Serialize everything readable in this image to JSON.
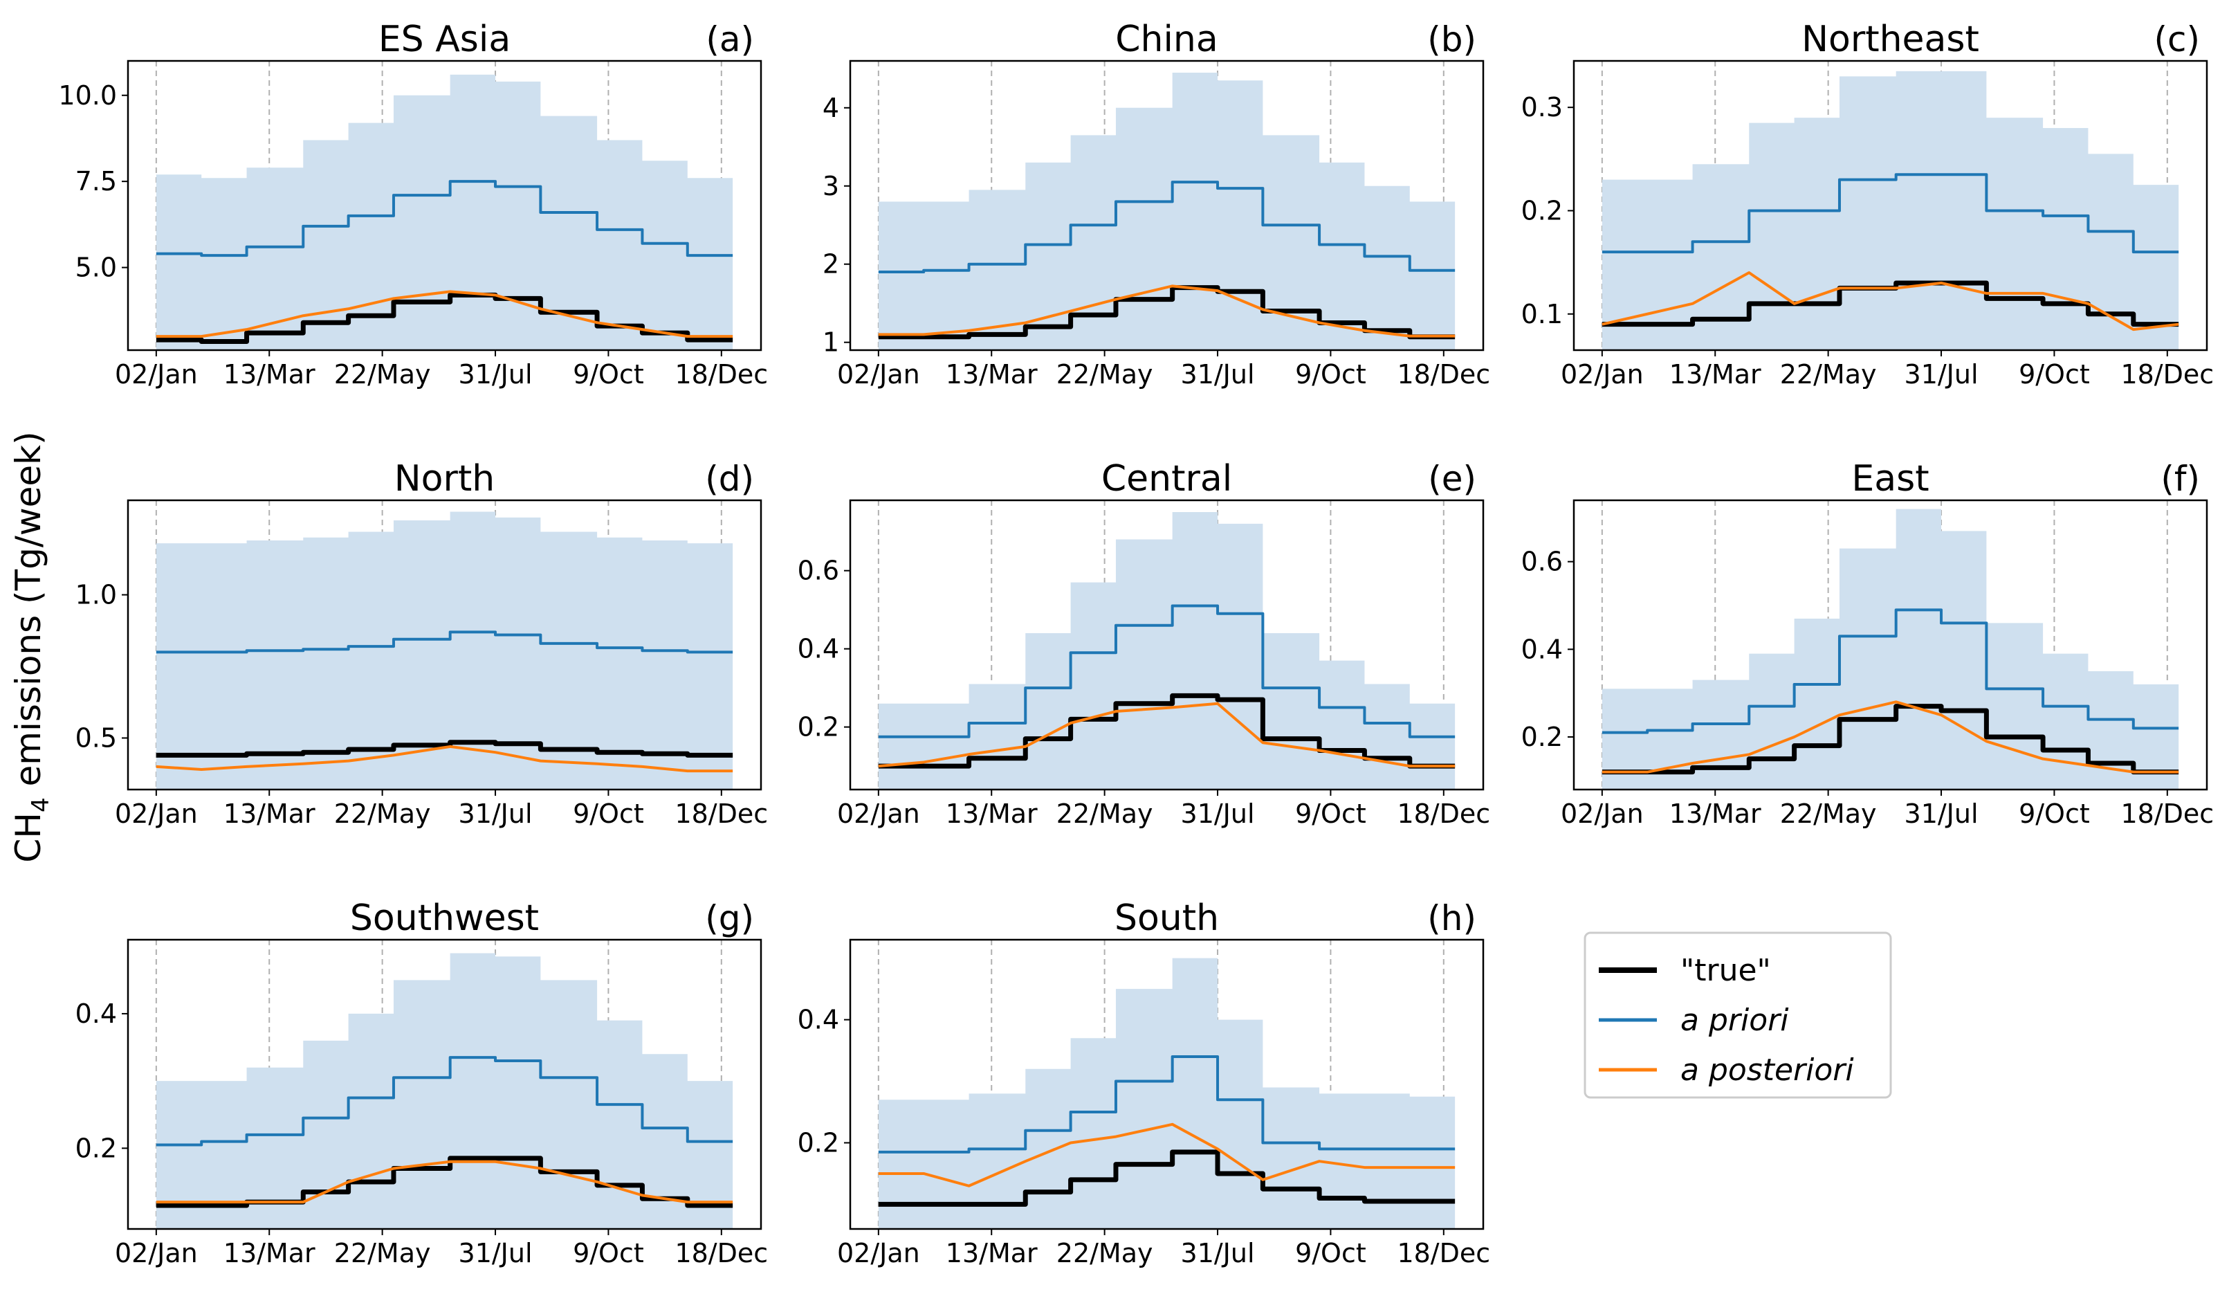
{
  "ylabel": [
    "CH",
    "4",
    " emissions (Tg/week)"
  ],
  "chart_data": [
    {
      "type": "line",
      "title": "ES Asia",
      "panel_label": "(a)",
      "x": [
        0,
        4,
        8,
        13,
        17,
        21,
        26,
        30,
        34,
        39,
        43,
        47,
        51
      ],
      "xlim": [
        -2.5,
        53.5
      ],
      "xticks": [
        {
          "value": 0,
          "label": "02/Jan"
        },
        {
          "value": 10,
          "label": "13/Mar"
        },
        {
          "value": 20,
          "label": "22/May"
        },
        {
          "value": 30,
          "label": "31/Jul"
        },
        {
          "value": 40,
          "label": "9/Oct"
        },
        {
          "value": 50,
          "label": "18/Dec"
        }
      ],
      "ylim": [
        2.6,
        11.0
      ],
      "yticks": [
        {
          "value": 5,
          "label": "5.0"
        },
        {
          "value": 7.5,
          "label": "7.5"
        },
        {
          "value": 10,
          "label": "10.0"
        }
      ],
      "grid": "x",
      "band": {
        "color": "#cfe0ef",
        "values": [
          7.7,
          7.6,
          7.9,
          8.7,
          9.2,
          10.0,
          10.6,
          10.4,
          9.4,
          8.7,
          8.1,
          7.6,
          7.6
        ]
      },
      "series": [
        {
          "name": "\"true\"",
          "color": "#000000",
          "width": 7,
          "drawstyle": "steps-post",
          "values": [
            2.9,
            2.85,
            3.1,
            3.4,
            3.6,
            4.0,
            4.2,
            4.1,
            3.7,
            3.3,
            3.1,
            2.9,
            2.9
          ]
        },
        {
          "name": "a priori",
          "color": "#1f77b4",
          "width": 4,
          "drawstyle": "steps-post",
          "values": [
            5.4,
            5.35,
            5.6,
            6.2,
            6.5,
            7.1,
            7.5,
            7.35,
            6.6,
            6.1,
            5.7,
            5.35,
            5.35
          ]
        },
        {
          "name": "a posteriori",
          "color": "#ff7f0e",
          "width": 4,
          "drawstyle": "default",
          "values": [
            3.0,
            3.0,
            3.2,
            3.6,
            3.8,
            4.1,
            4.3,
            4.2,
            3.8,
            3.4,
            3.2,
            3.0,
            3.0
          ]
        }
      ]
    },
    {
      "type": "line",
      "title": "China",
      "panel_label": "(b)",
      "x": [
        0,
        4,
        8,
        13,
        17,
        21,
        26,
        30,
        34,
        39,
        43,
        47,
        51
      ],
      "xlim": [
        -2.5,
        53.5
      ],
      "xticks": [
        {
          "value": 0,
          "label": "02/Jan"
        },
        {
          "value": 10,
          "label": "13/Mar"
        },
        {
          "value": 20,
          "label": "22/May"
        },
        {
          "value": 30,
          "label": "31/Jul"
        },
        {
          "value": 40,
          "label": "9/Oct"
        },
        {
          "value": 50,
          "label": "18/Dec"
        }
      ],
      "ylim": [
        0.9,
        4.6
      ],
      "yticks": [
        1,
        2,
        3,
        4
      ],
      "grid": "x",
      "band": {
        "color": "#cfe0ef",
        "values": [
          2.8,
          2.8,
          2.95,
          3.3,
          3.65,
          4.0,
          4.45,
          4.35,
          3.65,
          3.3,
          3.0,
          2.8,
          2.8
        ]
      },
      "series": [
        {
          "name": "\"true\"",
          "color": "#000000",
          "width": 7,
          "drawstyle": "steps-post",
          "values": [
            1.07,
            1.07,
            1.1,
            1.2,
            1.35,
            1.55,
            1.7,
            1.65,
            1.4,
            1.25,
            1.15,
            1.07,
            1.07
          ]
        },
        {
          "name": "a priori",
          "color": "#1f77b4",
          "width": 4,
          "drawstyle": "steps-post",
          "values": [
            1.9,
            1.92,
            2.0,
            2.25,
            2.5,
            2.8,
            3.05,
            2.97,
            2.5,
            2.25,
            2.1,
            1.92,
            1.92
          ]
        },
        {
          "name": "a posteriori",
          "color": "#ff7f0e",
          "width": 4,
          "drawstyle": "default",
          "values": [
            1.1,
            1.1,
            1.15,
            1.25,
            1.4,
            1.55,
            1.72,
            1.66,
            1.42,
            1.25,
            1.15,
            1.08,
            1.08
          ]
        }
      ]
    },
    {
      "type": "line",
      "title": "Northeast",
      "panel_label": "(c)",
      "x": [
        0,
        4,
        8,
        13,
        17,
        21,
        26,
        30,
        34,
        39,
        43,
        47,
        51
      ],
      "xlim": [
        -2.5,
        53.5
      ],
      "xticks": [
        {
          "value": 0,
          "label": "02/Jan"
        },
        {
          "value": 10,
          "label": "13/Mar"
        },
        {
          "value": 20,
          "label": "22/May"
        },
        {
          "value": 30,
          "label": "31/Jul"
        },
        {
          "value": 40,
          "label": "9/Oct"
        },
        {
          "value": 50,
          "label": "18/Dec"
        }
      ],
      "ylim": [
        0.065,
        0.345
      ],
      "yticks": [
        0.1,
        0.2,
        0.3
      ],
      "grid": "x",
      "band": {
        "color": "#cfe0ef",
        "values": [
          0.23,
          0.23,
          0.245,
          0.285,
          0.29,
          0.33,
          0.335,
          0.335,
          0.29,
          0.28,
          0.255,
          0.225,
          0.225
        ]
      },
      "series": [
        {
          "name": "\"true\"",
          "color": "#000000",
          "width": 7,
          "drawstyle": "steps-post",
          "values": [
            0.09,
            0.09,
            0.095,
            0.11,
            0.11,
            0.125,
            0.13,
            0.13,
            0.115,
            0.11,
            0.1,
            0.09,
            0.09
          ]
        },
        {
          "name": "a priori",
          "color": "#1f77b4",
          "width": 4,
          "drawstyle": "steps-post",
          "values": [
            0.16,
            0.16,
            0.17,
            0.2,
            0.2,
            0.23,
            0.235,
            0.235,
            0.2,
            0.195,
            0.18,
            0.16,
            0.16
          ]
        },
        {
          "name": "a posteriori",
          "color": "#ff7f0e",
          "width": 4,
          "drawstyle": "default",
          "values": [
            0.09,
            0.1,
            0.11,
            0.14,
            0.11,
            0.125,
            0.125,
            0.13,
            0.12,
            0.12,
            0.11,
            0.085,
            0.09
          ]
        }
      ]
    },
    {
      "type": "line",
      "title": "North",
      "panel_label": "(d)",
      "x": [
        0,
        4,
        8,
        13,
        17,
        21,
        26,
        30,
        34,
        39,
        43,
        47,
        51
      ],
      "xlim": [
        -2.5,
        53.5
      ],
      "xticks": [
        {
          "value": 0,
          "label": "02/Jan"
        },
        {
          "value": 10,
          "label": "13/Mar"
        },
        {
          "value": 20,
          "label": "22/May"
        },
        {
          "value": 30,
          "label": "31/Jul"
        },
        {
          "value": 40,
          "label": "9/Oct"
        },
        {
          "value": 50,
          "label": "18/Dec"
        }
      ],
      "ylim": [
        0.32,
        1.33
      ],
      "yticks": [
        0.5,
        {
          "value": 1,
          "label": "1.0"
        }
      ],
      "grid": "x",
      "band": {
        "color": "#cfe0ef",
        "values": [
          1.18,
          1.18,
          1.19,
          1.2,
          1.22,
          1.26,
          1.29,
          1.27,
          1.22,
          1.2,
          1.19,
          1.18,
          1.18
        ]
      },
      "series": [
        {
          "name": "\"true\"",
          "color": "#000000",
          "width": 7,
          "drawstyle": "steps-post",
          "values": [
            0.44,
            0.44,
            0.445,
            0.45,
            0.46,
            0.475,
            0.485,
            0.48,
            0.46,
            0.45,
            0.445,
            0.44,
            0.44
          ]
        },
        {
          "name": "a priori",
          "color": "#1f77b4",
          "width": 4,
          "drawstyle": "steps-post",
          "values": [
            0.8,
            0.8,
            0.805,
            0.81,
            0.82,
            0.845,
            0.87,
            0.86,
            0.83,
            0.815,
            0.805,
            0.8,
            0.8
          ]
        },
        {
          "name": "a posteriori",
          "color": "#ff7f0e",
          "width": 4,
          "drawstyle": "default",
          "values": [
            0.4,
            0.39,
            0.4,
            0.41,
            0.42,
            0.44,
            0.47,
            0.45,
            0.42,
            0.41,
            0.4,
            0.385,
            0.385
          ]
        }
      ]
    },
    {
      "type": "line",
      "title": "Central",
      "panel_label": "(e)",
      "x": [
        0,
        4,
        8,
        13,
        17,
        21,
        26,
        30,
        34,
        39,
        43,
        47,
        51
      ],
      "xlim": [
        -2.5,
        53.5
      ],
      "xticks": [
        {
          "value": 0,
          "label": "02/Jan"
        },
        {
          "value": 10,
          "label": "13/Mar"
        },
        {
          "value": 20,
          "label": "22/May"
        },
        {
          "value": 30,
          "label": "31/Jul"
        },
        {
          "value": 40,
          "label": "9/Oct"
        },
        {
          "value": 50,
          "label": "18/Dec"
        }
      ],
      "ylim": [
        0.04,
        0.78
      ],
      "yticks": [
        0.2,
        0.4,
        0.6
      ],
      "grid": "x",
      "band": {
        "color": "#cfe0ef",
        "values": [
          0.26,
          0.26,
          0.31,
          0.44,
          0.57,
          0.68,
          0.75,
          0.72,
          0.44,
          0.37,
          0.31,
          0.26,
          0.26
        ]
      },
      "series": [
        {
          "name": "\"true\"",
          "color": "#000000",
          "width": 7,
          "drawstyle": "steps-post",
          "values": [
            0.1,
            0.1,
            0.12,
            0.17,
            0.22,
            0.26,
            0.28,
            0.27,
            0.17,
            0.14,
            0.12,
            0.1,
            0.1
          ]
        },
        {
          "name": "a priori",
          "color": "#1f77b4",
          "width": 4,
          "drawstyle": "steps-post",
          "values": [
            0.175,
            0.175,
            0.21,
            0.3,
            0.39,
            0.46,
            0.51,
            0.49,
            0.3,
            0.25,
            0.21,
            0.175,
            0.175
          ]
        },
        {
          "name": "a posteriori",
          "color": "#ff7f0e",
          "width": 4,
          "drawstyle": "default",
          "values": [
            0.1,
            0.11,
            0.13,
            0.15,
            0.21,
            0.24,
            0.25,
            0.26,
            0.16,
            0.14,
            0.12,
            0.1,
            0.1
          ]
        }
      ]
    },
    {
      "type": "line",
      "title": "East",
      "panel_label": "(f)",
      "x": [
        0,
        4,
        8,
        13,
        17,
        21,
        26,
        30,
        34,
        39,
        43,
        47,
        51
      ],
      "xlim": [
        -2.5,
        53.5
      ],
      "xticks": [
        {
          "value": 0,
          "label": "02/Jan"
        },
        {
          "value": 10,
          "label": "13/Mar"
        },
        {
          "value": 20,
          "label": "22/May"
        },
        {
          "value": 30,
          "label": "31/Jul"
        },
        {
          "value": 40,
          "label": "9/Oct"
        },
        {
          "value": 50,
          "label": "18/Dec"
        }
      ],
      "ylim": [
        0.08,
        0.74
      ],
      "yticks": [
        0.2,
        0.4,
        0.6
      ],
      "grid": "x",
      "band": {
        "color": "#cfe0ef",
        "values": [
          0.31,
          0.31,
          0.33,
          0.39,
          0.47,
          0.63,
          0.72,
          0.67,
          0.46,
          0.39,
          0.35,
          0.32,
          0.32
        ]
      },
      "series": [
        {
          "name": "\"true\"",
          "color": "#000000",
          "width": 7,
          "drawstyle": "steps-post",
          "values": [
            0.12,
            0.12,
            0.13,
            0.15,
            0.18,
            0.24,
            0.27,
            0.26,
            0.2,
            0.17,
            0.14,
            0.12,
            0.12
          ]
        },
        {
          "name": "a priori",
          "color": "#1f77b4",
          "width": 4,
          "drawstyle": "steps-post",
          "values": [
            0.21,
            0.215,
            0.23,
            0.27,
            0.32,
            0.43,
            0.49,
            0.46,
            0.31,
            0.27,
            0.24,
            0.22,
            0.22
          ]
        },
        {
          "name": "a posteriori",
          "color": "#ff7f0e",
          "width": 4,
          "drawstyle": "default",
          "values": [
            0.12,
            0.12,
            0.14,
            0.16,
            0.2,
            0.25,
            0.28,
            0.25,
            0.19,
            0.15,
            0.135,
            0.12,
            0.12
          ]
        }
      ]
    },
    {
      "type": "line",
      "title": "Southwest",
      "panel_label": "(g)",
      "x": [
        0,
        4,
        8,
        13,
        17,
        21,
        26,
        30,
        34,
        39,
        43,
        47,
        51
      ],
      "xlim": [
        -2.5,
        53.5
      ],
      "xticks": [
        {
          "value": 0,
          "label": "02/Jan"
        },
        {
          "value": 10,
          "label": "13/Mar"
        },
        {
          "value": 20,
          "label": "22/May"
        },
        {
          "value": 30,
          "label": "31/Jul"
        },
        {
          "value": 40,
          "label": "9/Oct"
        },
        {
          "value": 50,
          "label": "18/Dec"
        }
      ],
      "ylim": [
        0.08,
        0.51
      ],
      "yticks": [
        0.2,
        0.4
      ],
      "grid": "x",
      "band": {
        "color": "#cfe0ef",
        "values": [
          0.3,
          0.3,
          0.32,
          0.36,
          0.4,
          0.45,
          0.49,
          0.485,
          0.45,
          0.39,
          0.34,
          0.3,
          0.3
        ]
      },
      "series": [
        {
          "name": "\"true\"",
          "color": "#000000",
          "width": 7,
          "drawstyle": "steps-post",
          "values": [
            0.115,
            0.115,
            0.12,
            0.135,
            0.15,
            0.17,
            0.185,
            0.185,
            0.165,
            0.145,
            0.125,
            0.115,
            0.115
          ]
        },
        {
          "name": "a priori",
          "color": "#1f77b4",
          "width": 4,
          "drawstyle": "steps-post",
          "values": [
            0.205,
            0.21,
            0.22,
            0.245,
            0.275,
            0.305,
            0.335,
            0.33,
            0.305,
            0.265,
            0.23,
            0.21,
            0.21
          ]
        },
        {
          "name": "a posteriori",
          "color": "#ff7f0e",
          "width": 4,
          "drawstyle": "default",
          "values": [
            0.12,
            0.12,
            0.12,
            0.12,
            0.15,
            0.17,
            0.18,
            0.18,
            0.17,
            0.15,
            0.13,
            0.12,
            0.12
          ]
        }
      ]
    },
    {
      "type": "line",
      "title": "South",
      "panel_label": "(h)",
      "x": [
        0,
        4,
        8,
        13,
        17,
        21,
        26,
        30,
        34,
        39,
        43,
        47,
        51
      ],
      "xlim": [
        -2.5,
        53.5
      ],
      "xticks": [
        {
          "value": 0,
          "label": "02/Jan"
        },
        {
          "value": 10,
          "label": "13/Mar"
        },
        {
          "value": 20,
          "label": "22/May"
        },
        {
          "value": 30,
          "label": "31/Jul"
        },
        {
          "value": 40,
          "label": "9/Oct"
        },
        {
          "value": 50,
          "label": "18/Dec"
        }
      ],
      "ylim": [
        0.06,
        0.53
      ],
      "yticks": [
        0.2,
        0.4
      ],
      "grid": "x",
      "band": {
        "color": "#cfe0ef",
        "values": [
          0.27,
          0.27,
          0.28,
          0.32,
          0.37,
          0.45,
          0.5,
          0.4,
          0.29,
          0.28,
          0.28,
          0.275,
          0.275
        ]
      },
      "series": [
        {
          "name": "\"true\"",
          "color": "#000000",
          "width": 7,
          "drawstyle": "steps-post",
          "values": [
            0.1,
            0.1,
            0.1,
            0.12,
            0.14,
            0.165,
            0.185,
            0.15,
            0.125,
            0.11,
            0.105,
            0.105,
            0.105
          ]
        },
        {
          "name": "a priori",
          "color": "#1f77b4",
          "width": 4,
          "drawstyle": "steps-post",
          "values": [
            0.185,
            0.185,
            0.19,
            0.22,
            0.25,
            0.3,
            0.34,
            0.27,
            0.2,
            0.19,
            0.19,
            0.19,
            0.19
          ]
        },
        {
          "name": "a posteriori",
          "color": "#ff7f0e",
          "width": 4,
          "drawstyle": "default",
          "values": [
            0.15,
            0.15,
            0.13,
            0.17,
            0.2,
            0.21,
            0.23,
            0.19,
            0.14,
            0.17,
            0.16,
            0.16,
            0.16
          ]
        }
      ]
    }
  ]
}
